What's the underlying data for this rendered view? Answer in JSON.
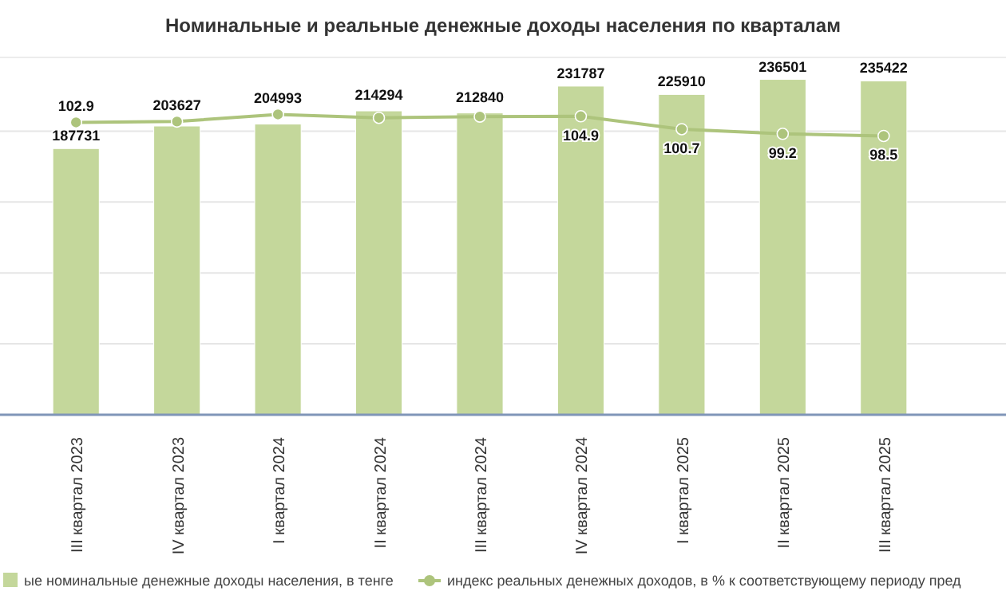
{
  "chart_data": {
    "type": "bar",
    "title": "Номинальные и реальные денежные доходы населения по кварталам",
    "categories": [
      "III квартал 2023",
      "IV квартал 2023",
      "I квартал 2024",
      "II квартал 2024",
      "III квартал 2024",
      "IV квартал 2024",
      "I квартал 2025",
      "II квартал 2025",
      "III квартал 2025"
    ],
    "series": [
      {
        "name": "ые номинальные денежные доходы населения, в тенге",
        "color": "#c4d79b",
        "values": [
          187731,
          203627,
          204993,
          214294,
          212840,
          231787,
          225910,
          236501,
          235422
        ],
        "value_labels": [
          "187731",
          "203627",
          "204993",
          "214294",
          "212840",
          "231787",
          "225910",
          "236501",
          "235422"
        ]
      },
      {
        "name": "индекс реальных денежных доходов, в % к соответствующему периоду пред",
        "type": "line",
        "axis": "y2",
        "color": "#adc47c",
        "marker": "circle",
        "values": [
          102.9,
          103.2,
          105.5,
          104.4,
          104.8,
          104.9,
          100.7,
          99.2,
          98.5
        ],
        "value_labels": [
          "102.9",
          null,
          null,
          null,
          null,
          "104.9",
          "100.7",
          "99.2",
          "98.5"
        ]
      }
    ],
    "ylim": [
      0,
      252000
    ],
    "yticks": [
      {
        "value": 0,
        "label": null
      },
      {
        "value": 50000,
        "label": null
      },
      {
        "value": 100000,
        "label": null
      },
      {
        "value": 150000,
        "label": null
      },
      {
        "value": 200000,
        "label": null
      }
    ],
    "y2lim": [
      8,
      124
    ],
    "tick_labels": "x",
    "grid": "y",
    "legend": "bottom"
  }
}
